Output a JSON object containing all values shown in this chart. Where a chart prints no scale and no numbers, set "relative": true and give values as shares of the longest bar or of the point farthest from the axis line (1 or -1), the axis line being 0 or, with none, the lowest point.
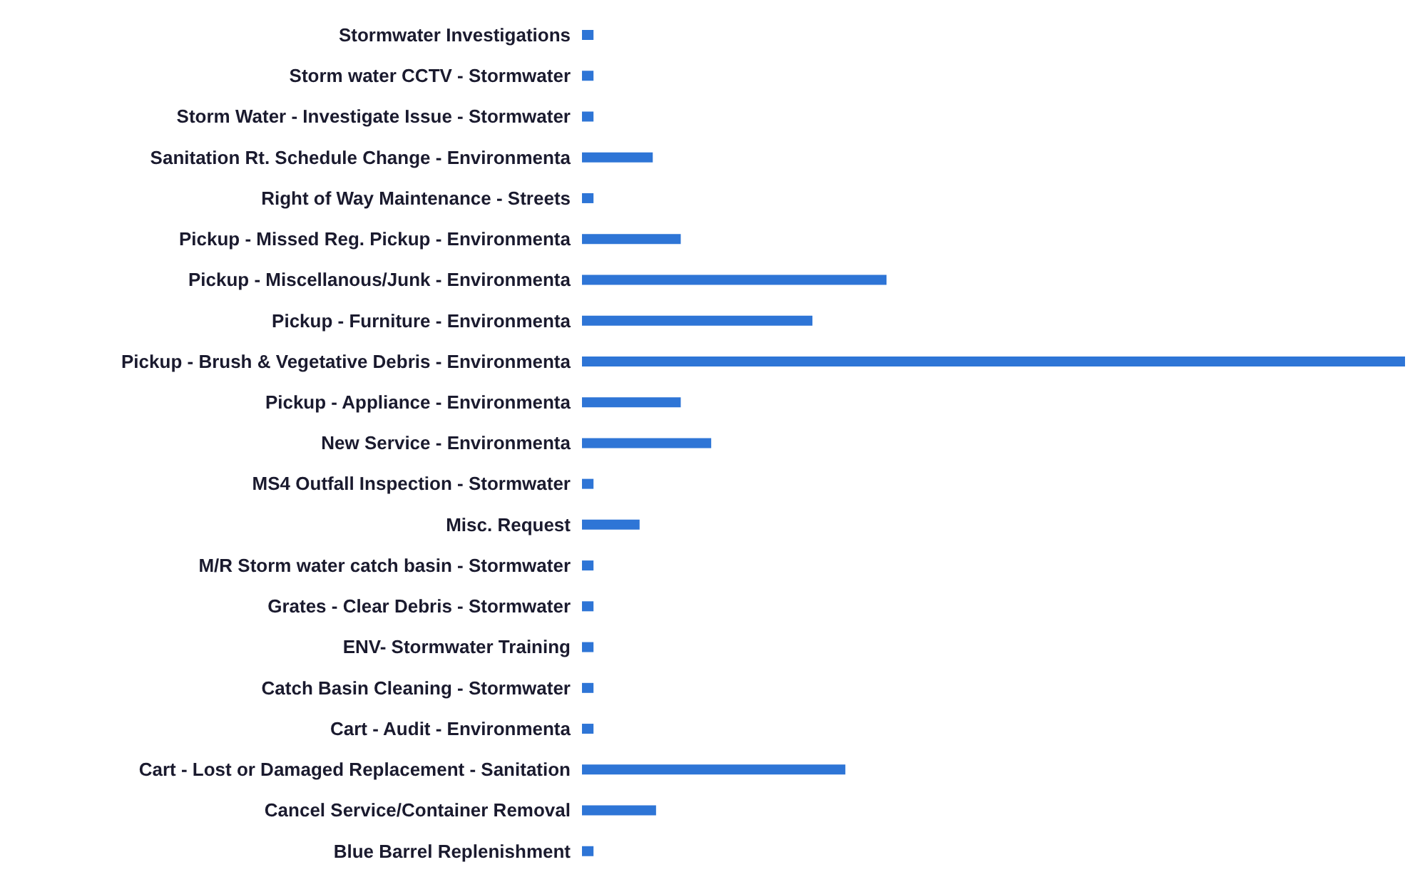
{
  "chart_data": {
    "type": "bar",
    "orientation": "horizontal",
    "relative": true,
    "color": "#2e75d6",
    "grid": false,
    "legend": false,
    "categories": [
      "Stormwater Investigations",
      "Storm water CCTV - Stormwater",
      "Storm Water - Investigate Issue - Stormwater",
      "Sanitation Rt. Schedule Change -  Environmenta",
      "Right of Way Maintenance - Streets",
      "Pickup - Missed Reg. Pickup -  Environmenta",
      "Pickup - Miscellanous/Junk  -  Environmenta",
      "Pickup - Furniture -  Environmenta",
      "Pickup - Brush & Vegetative Debris -  Environmenta",
      "Pickup - Appliance -  Environmenta",
      "New Service -  Environmenta",
      "MS4 Outfall Inspection - Stormwater",
      "Misc. Request",
      "M/R Storm water catch basin - Stormwater",
      "Grates - Clear Debris  - Stormwater",
      "ENV- Stormwater Training",
      "Catch Basin Cleaning - Stormwater",
      "Cart - Audit -  Environmenta",
      "Cart -  Lost or Damaged Replacement - Sanitation",
      "Cancel Service/Container Removal",
      "Blue Barrel Replenishment"
    ],
    "values": [
      0.014,
      0.014,
      0.014,
      0.086,
      0.014,
      0.12,
      0.37,
      0.28,
      1,
      0.12,
      0.157,
      0.014,
      0.07,
      0.014,
      0.014,
      0.014,
      0.014,
      0.014,
      0.32,
      0.09,
      0.014
    ]
  }
}
